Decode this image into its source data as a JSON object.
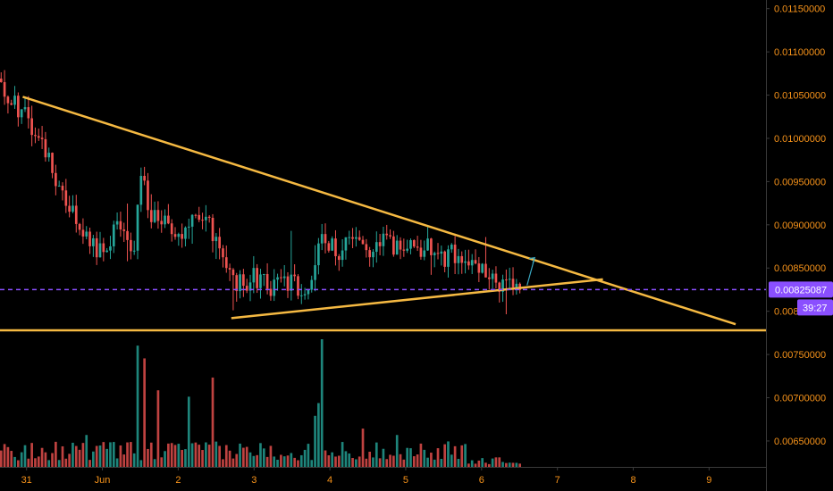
{
  "chart_data": {
    "type": "candlestick",
    "colors": {
      "background": "#000000",
      "up_candle": "#26a69a",
      "down_candle": "#ef5350",
      "trendline": "#f5b942",
      "current_price_line": "#8a4fff",
      "axis_text": "#f7931a",
      "axis_border": "#3a3a3a",
      "annotation_arrow": "#3aa8c2"
    },
    "price_axis": {
      "ticks": [
        "0.01150000",
        "0.01100000",
        "0.01050000",
        "0.01000000",
        "0.00950000",
        "0.00900000",
        "0.00850000",
        "0.00800000",
        "0.00750000",
        "0.00700000",
        "0.00650000"
      ],
      "tick_values": [
        0.0115,
        0.011,
        0.0105,
        0.01,
        0.0095,
        0.009,
        0.0085,
        0.008,
        0.0075,
        0.007,
        0.0065
      ],
      "range": [
        0.0062,
        0.0116
      ]
    },
    "time_axis": {
      "labels": [
        "31",
        "Jun",
        "2",
        "3",
        "4",
        "5",
        "6",
        "7",
        "8",
        "9"
      ],
      "label_days": [
        0,
        1,
        2,
        3,
        4,
        5,
        6,
        7,
        8,
        9
      ],
      "range_days": [
        -0.35,
        9.75
      ]
    },
    "current_price": {
      "value": 0.00825087,
      "label": "0.00825087",
      "countdown": "39:27"
    },
    "horizontal_support": {
      "price": 0.00778
    },
    "trendlines": [
      {
        "name": "descending-resistance",
        "from": {
          "day": -0.05,
          "price": 0.01048
        },
        "to": {
          "day": 9.35,
          "price": 0.00785
        }
      },
      {
        "name": "ascending-support",
        "from": {
          "day": 2.7,
          "price": 0.00792
        },
        "to": {
          "day": 7.6,
          "price": 0.00837
        }
      }
    ],
    "annotation_arrow": {
      "from": {
        "day": 6.6,
        "price": 0.0083
      },
      "to": {
        "day": 6.7,
        "price": 0.00862
      }
    },
    "price_anchors": {
      "days": [
        -0.4,
        -0.2,
        0.0,
        0.2,
        0.4,
        0.6,
        0.8,
        0.95,
        1.05,
        1.2,
        1.4,
        1.5,
        1.6,
        1.8,
        2.0,
        2.2,
        2.5,
        2.7,
        2.8,
        3.0,
        3.2,
        3.5,
        3.7,
        3.8,
        3.9,
        4.1,
        4.3,
        4.5,
        4.7,
        4.9,
        5.1,
        5.3,
        5.5,
        5.7,
        5.9,
        6.1,
        6.3,
        6.5
      ],
      "prices": [
        0.0107,
        0.0104,
        0.0103,
        0.0099,
        0.0095,
        0.0092,
        0.0089,
        0.0087,
        0.0088,
        0.009,
        0.0086,
        0.0097,
        0.0092,
        0.009,
        0.0089,
        0.0091,
        0.0089,
        0.0084,
        0.0083,
        0.0084,
        0.0083,
        0.0083,
        0.0082,
        0.0086,
        0.0088,
        0.0087,
        0.0088,
        0.0086,
        0.0089,
        0.0087,
        0.0087,
        0.0088,
        0.0086,
        0.0087,
        0.0085,
        0.0084,
        0.0083,
        0.0083
      ],
      "volume_spikes": [
        {
          "day": 0.8,
          "volume": 0.25
        },
        {
          "day": 1.45,
          "volume": 0.95
        },
        {
          "day": 1.55,
          "volume": 0.85
        },
        {
          "day": 1.75,
          "volume": 0.6
        },
        {
          "day": 2.15,
          "volume": 0.55
        },
        {
          "day": 2.45,
          "volume": 0.7
        },
        {
          "day": 3.8,
          "volume": 0.4
        },
        {
          "day": 3.9,
          "volume": 1.0
        },
        {
          "day": 3.85,
          "volume": 0.5
        },
        {
          "day": 4.45,
          "volume": 0.3
        },
        {
          "day": 4.9,
          "volume": 0.25
        }
      ]
    }
  }
}
